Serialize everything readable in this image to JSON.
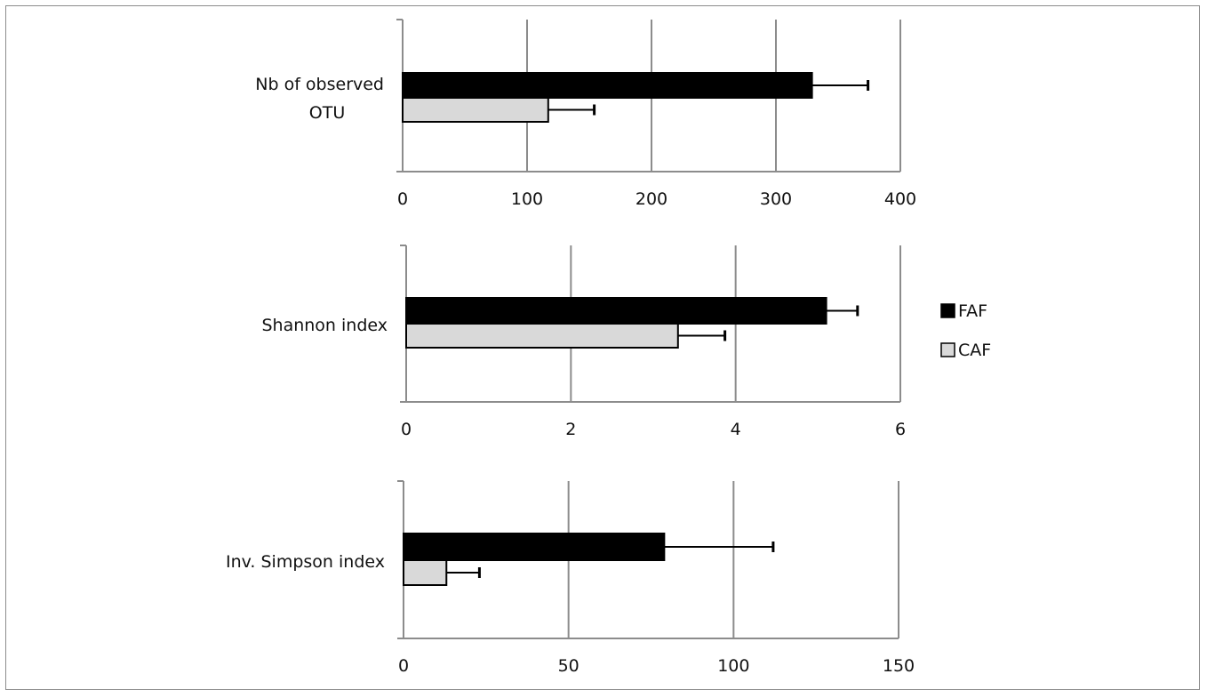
{
  "chart_data": [
    {
      "type": "bar",
      "orientation": "horizontal",
      "category": [
        "Nb of observed",
        "OTU"
      ],
      "xlim": [
        0,
        400
      ],
      "xticks": [
        0,
        100,
        200,
        300,
        400
      ],
      "series": [
        {
          "name": "FAF",
          "value": 329,
          "error": 45
        },
        {
          "name": "CAF",
          "value": 117,
          "error": 37
        }
      ],
      "grid": true
    },
    {
      "type": "bar",
      "orientation": "horizontal",
      "category": [
        "Shannon index"
      ],
      "xlim": [
        0,
        6
      ],
      "xticks": [
        0,
        2,
        4,
        6
      ],
      "series": [
        {
          "name": "FAF",
          "value": 5.1,
          "error": 0.38
        },
        {
          "name": "CAF",
          "value": 3.3,
          "error": 0.57
        }
      ],
      "grid": true
    },
    {
      "type": "bar",
      "orientation": "horizontal",
      "category": [
        "Inv. Simpson index"
      ],
      "xlim": [
        0,
        150
      ],
      "xticks": [
        0,
        50,
        100,
        150
      ],
      "series": [
        {
          "name": "FAF",
          "value": 79,
          "error": 33
        },
        {
          "name": "CAF",
          "value": 13,
          "error": 10
        }
      ],
      "grid": true
    }
  ],
  "legend": {
    "placement": "right",
    "items": [
      {
        "label": "FAF",
        "color": "#000000"
      },
      {
        "label": "CAF",
        "color": "#d9d9d9"
      }
    ]
  },
  "colors": {
    "FAF": "#000000",
    "CAF": "#d9d9d9",
    "grid": "#8c8c8c"
  }
}
